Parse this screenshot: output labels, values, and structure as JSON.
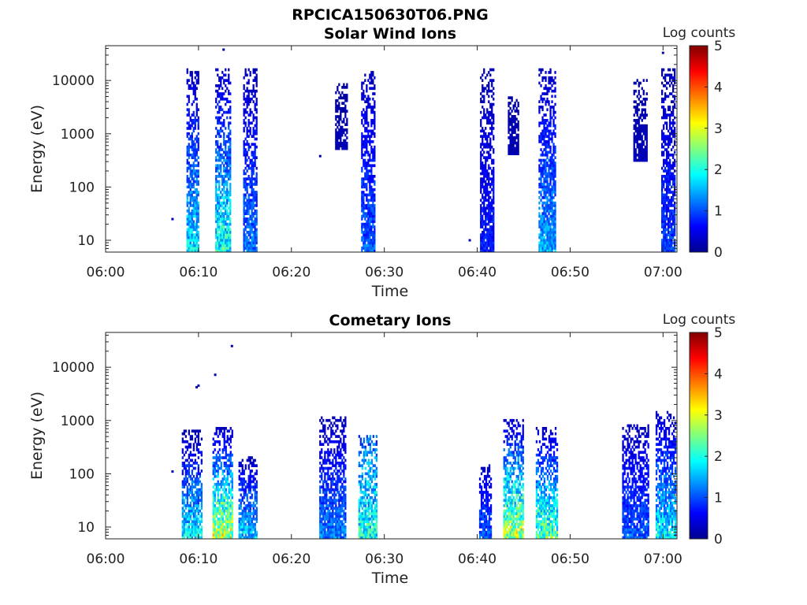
{
  "figure_title": "RPCICA150630T06.PNG",
  "chart_data": [
    {
      "type": "heatmap",
      "title": "Solar Wind Ions",
      "xlabel": "Time",
      "ylabel": "Energy (eV)",
      "x_ticks": [
        "06:00",
        "06:10",
        "06:20",
        "06:30",
        "06:40",
        "06:50",
        "07:00"
      ],
      "x_range_minutes": [
        0,
        61.5
      ],
      "y_ticks": [
        10,
        100,
        1000,
        10000
      ],
      "y_tick_labels": [
        "10",
        "100",
        "1000",
        "10000"
      ],
      "y_scale": "log",
      "y_range": [
        6,
        45000
      ],
      "colorbar": {
        "label": "Log counts",
        "range": [
          0,
          5
        ],
        "ticks": [
          "0",
          "1",
          "2",
          "3",
          "4",
          "5"
        ],
        "colormap": "jet"
      },
      "bursts": [
        {
          "t_start": 8.7,
          "t_end": 10.0,
          "e_max": 16000,
          "e_min": 6,
          "level_low": 1.9,
          "level_high": 0.3
        },
        {
          "t_start": 11.8,
          "t_end": 13.4,
          "e_max": 16000,
          "e_min": 6,
          "level_low": 2.2,
          "level_high": 0.35
        },
        {
          "t_start": 14.8,
          "t_end": 16.3,
          "e_max": 16000,
          "e_min": 6,
          "level_low": 1.3,
          "level_high": 0.3
        },
        {
          "t_start": 24.7,
          "t_end": 26.0,
          "e_max": 8000,
          "e_min": 500,
          "level_low": 0.3,
          "level_high": 0.2
        },
        {
          "t_start": 27.5,
          "t_end": 29.0,
          "e_max": 15000,
          "e_min": 6,
          "level_low": 1.2,
          "level_high": 0.3
        },
        {
          "t_start": 40.3,
          "t_end": 41.8,
          "e_max": 16000,
          "e_min": 6,
          "level_low": 0.8,
          "level_high": 0.3
        },
        {
          "t_start": 43.3,
          "t_end": 44.4,
          "e_max": 5000,
          "e_min": 400,
          "level_low": 0.3,
          "level_high": 0.2
        },
        {
          "t_start": 46.6,
          "t_end": 48.4,
          "e_max": 16000,
          "e_min": 6,
          "level_low": 1.6,
          "level_high": 0.3
        },
        {
          "t_start": 56.8,
          "t_end": 58.2,
          "e_max": 10000,
          "e_min": 300,
          "level_low": 0.3,
          "level_high": 0.2
        },
        {
          "t_start": 59.8,
          "t_end": 61.2,
          "e_max": 16000,
          "e_min": 6,
          "level_low": 1.0,
          "level_high": 0.3
        }
      ],
      "isolated_points": [
        {
          "t": 7.2,
          "e": 25,
          "level": 0.3
        },
        {
          "t": 23.1,
          "e": 380,
          "level": 0.2
        },
        {
          "t": 39.2,
          "e": 10,
          "level": 0.3
        },
        {
          "t": 12.7,
          "e": 38000,
          "level": 0.2
        },
        {
          "t": 60.0,
          "e": 33000,
          "level": 0.2
        }
      ]
    },
    {
      "type": "heatmap",
      "title": "Cometary Ions",
      "xlabel": "Time",
      "ylabel": "Energy (eV)",
      "x_ticks": [
        "06:00",
        "06:10",
        "06:20",
        "06:30",
        "06:40",
        "06:50",
        "07:00"
      ],
      "x_range_minutes": [
        0,
        61.5
      ],
      "y_ticks": [
        10,
        100,
        1000,
        10000
      ],
      "y_tick_labels": [
        "10",
        "100",
        "1000",
        "10000"
      ],
      "y_scale": "log",
      "y_range": [
        6,
        45000
      ],
      "colorbar": {
        "label": "Log counts",
        "range": [
          0,
          5
        ],
        "ticks": [
          "0",
          "1",
          "2",
          "3",
          "4",
          "5"
        ],
        "colormap": "jet"
      },
      "bursts": [
        {
          "t_start": 8.2,
          "t_end": 10.3,
          "e_max": 600,
          "e_min": 6,
          "level_low": 2.0,
          "level_high": 0.3
        },
        {
          "t_start": 11.5,
          "t_end": 13.6,
          "e_max": 700,
          "e_min": 6,
          "level_low": 3.1,
          "level_high": 0.3
        },
        {
          "t_start": 14.3,
          "t_end": 16.3,
          "e_max": 200,
          "e_min": 6,
          "level_low": 1.8,
          "level_high": 0.3
        },
        {
          "t_start": 23.0,
          "t_end": 25.8,
          "e_max": 1100,
          "e_min": 6,
          "level_low": 1.4,
          "level_high": 0.3
        },
        {
          "t_start": 27.2,
          "t_end": 29.2,
          "e_max": 500,
          "e_min": 6,
          "level_low": 2.2,
          "level_high": 1.2
        },
        {
          "t_start": 40.2,
          "t_end": 41.5,
          "e_max": 140,
          "e_min": 6,
          "level_low": 1.2,
          "level_high": 0.3
        },
        {
          "t_start": 42.8,
          "t_end": 45.0,
          "e_max": 1000,
          "e_min": 6,
          "level_low": 3.0,
          "level_high": 0.4
        },
        {
          "t_start": 46.3,
          "t_end": 48.6,
          "e_max": 700,
          "e_min": 6,
          "level_low": 2.6,
          "level_high": 0.3
        },
        {
          "t_start": 55.6,
          "t_end": 58.4,
          "e_max": 800,
          "e_min": 6,
          "level_low": 1.2,
          "level_high": 0.3
        },
        {
          "t_start": 59.2,
          "t_end": 61.4,
          "e_max": 1400,
          "e_min": 6,
          "level_low": 2.0,
          "level_high": 0.3
        }
      ],
      "isolated_points": [
        {
          "t": 7.2,
          "e": 110,
          "level": 0.3
        },
        {
          "t": 9.8,
          "e": 4200,
          "level": 0.2
        },
        {
          "t": 10.0,
          "e": 4500,
          "level": 0.2
        },
        {
          "t": 11.8,
          "e": 7200,
          "level": 0.2
        },
        {
          "t": 13.6,
          "e": 25000,
          "level": 0.2
        }
      ]
    }
  ]
}
